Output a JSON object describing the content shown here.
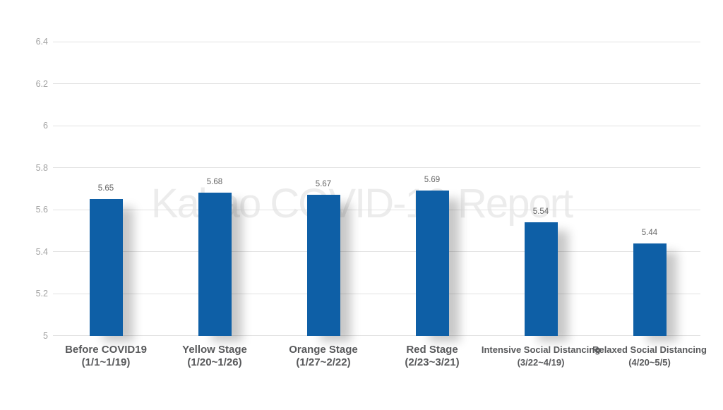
{
  "watermark": "Kakao COVID-19 Report",
  "colors": {
    "background": "#ffffff",
    "bar": "#0e5fa6",
    "grid": "#e2e2e2",
    "tick_label": "#a2a2a2",
    "value_label": "#666666",
    "category_label": "#58595b",
    "watermark": "#ececec"
  },
  "chart_data": {
    "type": "bar",
    "title": "",
    "xlabel": "",
    "ylabel": "",
    "legend_position": "none",
    "grid": "horizontal",
    "ylim": [
      5,
      6.4
    ],
    "ytick_values": [
      5,
      5.2,
      5.4,
      5.6,
      5.8,
      6,
      6.2,
      6.4
    ],
    "ytick_labels": [
      "5",
      "5.2",
      "5.4",
      "5.6",
      "5.8",
      "6",
      "6.2",
      "6.4"
    ],
    "categories": [
      {
        "label": "Before COVID19",
        "period": "(1/1~1/19)",
        "small": false
      },
      {
        "label": "Yellow Stage",
        "period": "(1/20~1/26)",
        "small": false
      },
      {
        "label": "Orange Stage",
        "period": "(1/27~2/22)",
        "small": false
      },
      {
        "label": "Red Stage",
        "period": "(2/23~3/21)",
        "small": false
      },
      {
        "label": "Intensive Social Distancing",
        "period": "(3/22~4/19)",
        "small": true
      },
      {
        "label": "Relaxed Social Distancing",
        "period": "(4/20~5/5)",
        "small": true
      }
    ],
    "values": [
      5.65,
      5.68,
      5.67,
      5.69,
      5.54,
      5.44
    ],
    "value_labels": [
      "5.65",
      "5.68",
      "5.67",
      "5.69",
      "5.54",
      "5.44"
    ]
  }
}
